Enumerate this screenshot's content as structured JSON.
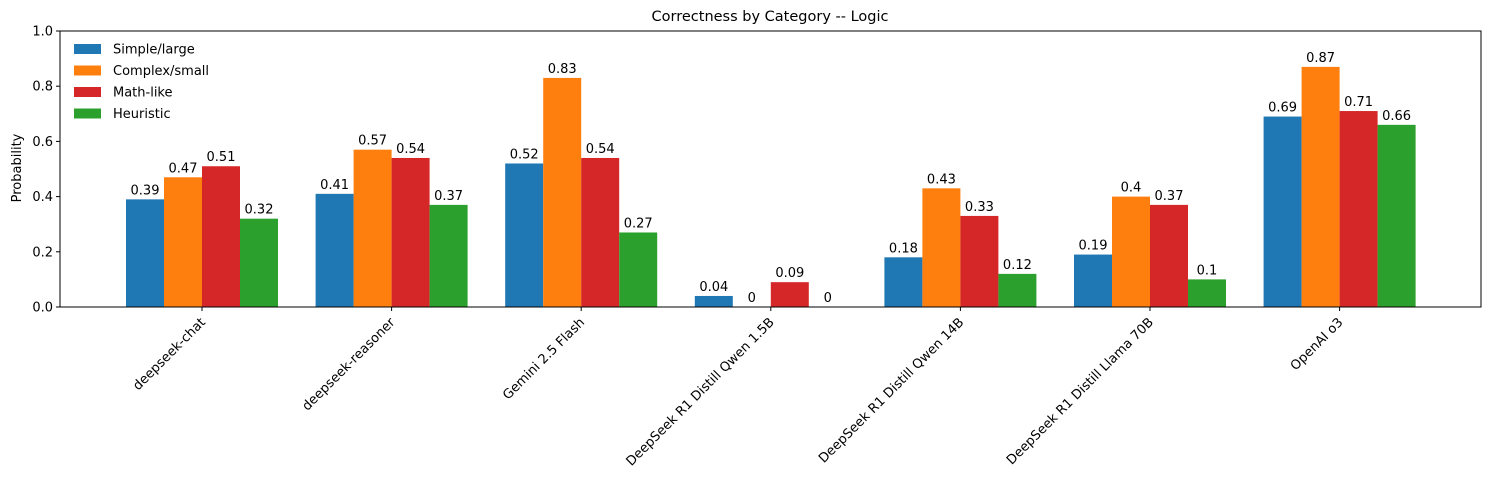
{
  "chart_data": {
    "type": "bar",
    "title": "Correctness by Category -- Logic",
    "xlabel": "",
    "ylabel": "Probability",
    "ylim": [
      0,
      1.0
    ],
    "yticks": [
      "0.0",
      "0.2",
      "0.4",
      "0.6",
      "0.8",
      "1.0"
    ],
    "grid": false,
    "legend_position": "top-left",
    "categories": [
      "deepseek-chat",
      "deepseek-reasoner",
      "Gemini 2.5 Flash",
      "DeepSeek R1 Distill Qwen 1.5B",
      "DeepSeek R1 Distill Qwen 14B",
      "DeepSeek R1 Distill Llama 70B",
      "OpenAI o3"
    ],
    "series": [
      {
        "name": "Simple/large",
        "color": "#1f77b4",
        "values": [
          0.39,
          0.41,
          0.52,
          0.04,
          0.18,
          0.19,
          0.69
        ]
      },
      {
        "name": "Complex/small",
        "color": "#ff7f0e",
        "values": [
          0.47,
          0.57,
          0.83,
          0,
          0.43,
          0.4,
          0.87
        ]
      },
      {
        "name": "Math-like",
        "color": "#d62728",
        "values": [
          0.51,
          0.54,
          0.54,
          0.09,
          0.33,
          0.37,
          0.71
        ]
      },
      {
        "name": "Heuristic",
        "color": "#2ca02c",
        "values": [
          0.32,
          0.37,
          0.27,
          0,
          0.12,
          0.1,
          0.66
        ]
      }
    ]
  }
}
